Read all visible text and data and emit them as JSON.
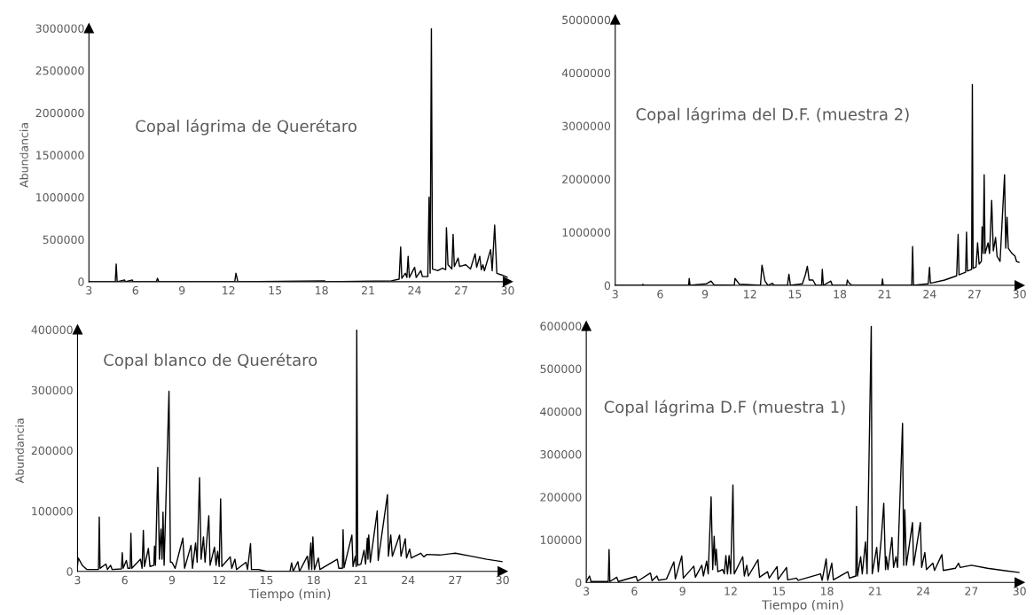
{
  "chart_data": [
    {
      "type": "line",
      "title": "Copal lágrima de Querétaro",
      "ylabel": "Abundancia",
      "xlim": [
        3,
        30
      ],
      "xticks": [
        3,
        6,
        9,
        12,
        15,
        18,
        21,
        24,
        27,
        30
      ],
      "ylim": [
        0,
        3000000
      ],
      "yticks": [
        0,
        500000,
        1000000,
        1500000,
        2000000,
        2500000,
        3000000
      ],
      "grid": false,
      "x": [
        3,
        4.7,
        4.76,
        4.82,
        5.3,
        5.35,
        5.8,
        5.85,
        7.35,
        7.42,
        7.5,
        12.4,
        12.48,
        12.6,
        18.2,
        18.25,
        22.5,
        23.0,
        23.1,
        23.17,
        23.4,
        23.5,
        23.58,
        23.66,
        24.0,
        24.1,
        24.4,
        24.5,
        24.85,
        24.93,
        25.0,
        25.08,
        25.15,
        25.5,
        25.8,
        26.0,
        26.05,
        26.15,
        26.4,
        26.48,
        26.56,
        26.8,
        26.9,
        27.3,
        27.6,
        27.9,
        28.0,
        28.2,
        28.3,
        28.4,
        28.5,
        28.9,
        29.0,
        29.16,
        29.3,
        29.6,
        30
      ],
      "series": [
        {
          "color": "#000000",
          "values": [
            0,
            0,
            210000,
            0,
            20000,
            0,
            20000,
            0,
            0,
            40000,
            0,
            0,
            100000,
            0,
            10000,
            0,
            10000,
            30000,
            410000,
            40000,
            100000,
            50000,
            300000,
            50000,
            170000,
            50000,
            130000,
            60000,
            60000,
            1000000,
            100000,
            3000000,
            150000,
            130000,
            160000,
            140000,
            640000,
            200000,
            150000,
            560000,
            180000,
            280000,
            180000,
            200000,
            150000,
            330000,
            170000,
            300000,
            140000,
            200000,
            130000,
            380000,
            130000,
            670000,
            100000,
            80000,
            50000
          ]
        }
      ]
    },
    {
      "type": "line",
      "title": "Copal lágrima del D.F. (muestra 2)",
      "xlim": [
        3,
        30
      ],
      "xticks": [
        3,
        6,
        9,
        12,
        15,
        18,
        21,
        24,
        27,
        30
      ],
      "ylim": [
        0,
        5000000
      ],
      "yticks": [
        0,
        1000000,
        2000000,
        3000000,
        4000000,
        5000000
      ],
      "grid": false,
      "x": [
        3,
        4.8,
        4.85,
        4.9,
        7.9,
        7.94,
        8.0,
        9.1,
        9.4,
        9.6,
        10.95,
        11.0,
        11.3,
        12.7,
        12.8,
        13.0,
        13.2,
        13.5,
        13.6,
        14.5,
        14.6,
        14.7,
        15.5,
        15.7,
        15.83,
        15.95,
        16.2,
        16.4,
        16.78,
        16.83,
        16.9,
        17.4,
        17.5,
        18.45,
        18.5,
        18.6,
        18.8,
        20.8,
        20.85,
        20.9,
        22.8,
        22.86,
        22.92,
        23.9,
        23.99,
        24.05,
        25,
        25.8,
        25.9,
        25.96,
        26.4,
        26.46,
        26.52,
        26.8,
        26.85,
        26.9,
        27.1,
        27.2,
        27.3,
        27.45,
        27.5,
        27.57,
        27.64,
        27.7,
        27.9,
        28.0,
        28.14,
        28.25,
        28.4,
        28.5,
        28.7,
        29.0,
        29.08,
        29.17,
        29.25,
        29.5,
        29.7,
        29.8,
        30
      ],
      "series": [
        {
          "color": "#000000",
          "values": [
            0,
            0,
            20000,
            0,
            0,
            130000,
            0,
            30000,
            80000,
            10000,
            0,
            130000,
            20000,
            0,
            380000,
            80000,
            0,
            40000,
            0,
            0,
            210000,
            0,
            30000,
            200000,
            360000,
            100000,
            100000,
            0,
            0,
            300000,
            0,
            80000,
            0,
            0,
            100000,
            50000,
            0,
            0,
            120000,
            0,
            0,
            730000,
            0,
            30000,
            340000,
            40000,
            100000,
            180000,
            960000,
            200000,
            250000,
            1000000,
            270000,
            300000,
            3780000,
            320000,
            350000,
            800000,
            400000,
            450000,
            1100000,
            600000,
            2080000,
            600000,
            800000,
            600000,
            1600000,
            650000,
            900000,
            550000,
            450000,
            2080000,
            700000,
            1280000,
            700000,
            600000,
            550000,
            450000,
            430000
          ]
        }
      ]
    },
    {
      "type": "line",
      "title": "Copal blanco de Querétaro",
      "xlabel": "Tiempo (min)",
      "ylabel": "Abundancia",
      "xlim": [
        3,
        30
      ],
      "xticks": [
        3,
        6,
        9,
        12,
        15,
        18,
        21,
        24,
        27,
        30
      ],
      "ylim": [
        0,
        400000
      ],
      "yticks": [
        0,
        100000,
        200000,
        300000,
        400000
      ],
      "grid": false,
      "x": [
        3.0,
        3.05,
        3.3,
        3.6,
        4.33,
        4.38,
        4.43,
        4.8,
        4.9,
        5.1,
        5.2,
        5.79,
        5.84,
        5.9,
        6.1,
        6.2,
        6.34,
        6.39,
        6.45,
        7.0,
        7.1,
        7.18,
        7.25,
        7.5,
        7.6,
        7.85,
        7.89,
        7.95,
        8.1,
        8.2,
        8.3,
        8.37,
        8.43,
        8.5,
        8.81,
        8.9,
        9.0,
        9.2,
        9.69,
        9.8,
        10.21,
        10.3,
        10.5,
        10.6,
        10.75,
        10.85,
        11.0,
        11.1,
        11.34,
        11.42,
        11.7,
        11.8,
        11.9,
        12.0,
        12.09,
        12.17,
        12.7,
        12.8,
        13.0,
        13.1,
        13.7,
        13.8,
        13.99,
        14.05,
        14.5,
        15.0,
        16.5,
        16.6,
        16.7,
        17.0,
        17.1,
        17.6,
        17.7,
        17.82,
        17.88,
        17.95,
        18.05,
        18.3,
        18.4,
        19.5,
        19.6,
        19.83,
        19.87,
        19.93,
        20.43,
        20.5,
        20.65,
        20.7,
        20.74,
        20.8,
        21.0,
        21.2,
        21.3,
        21.41,
        21.45,
        21.5,
        21.6,
        22.04,
        22.1,
        22.69,
        22.75,
        22.9,
        23.0,
        23.46,
        23.55,
        23.82,
        23.9,
        24.1,
        24.2,
        24.8,
        25.0,
        25.2,
        26.0,
        27.0,
        28.0,
        29.0,
        30.0
      ],
      "series": [
        {
          "color": "#000000",
          "values": [
            10000,
            22000,
            10000,
            3000,
            3000,
            90000,
            5000,
            12000,
            3000,
            10000,
            3000,
            4000,
            31000,
            5000,
            18000,
            5000,
            5000,
            63000,
            5000,
            20000,
            5000,
            68000,
            8000,
            38000,
            8000,
            10000,
            42000,
            10000,
            172000,
            20000,
            70000,
            20000,
            98000,
            10000,
            298000,
            15000,
            15000,
            5000,
            55000,
            5000,
            43000,
            5000,
            47000,
            15000,
            155000,
            20000,
            57000,
            15000,
            92000,
            10000,
            40000,
            10000,
            33000,
            8000,
            120000,
            8000,
            24000,
            5000,
            20000,
            3000,
            15000,
            3000,
            46000,
            3000,
            3000,
            0,
            0,
            14000,
            0,
            16000,
            0,
            25000,
            3000,
            47000,
            3000,
            57000,
            3000,
            22000,
            3000,
            20000,
            5000,
            5000,
            69000,
            6000,
            60000,
            8000,
            25000,
            8000,
            400000,
            10000,
            12000,
            35000,
            12000,
            55000,
            20000,
            60000,
            15000,
            100000,
            18000,
            127000,
            25000,
            60000,
            25000,
            60000,
            25000,
            54000,
            22000,
            37000,
            22000,
            30000,
            24000,
            28000,
            27000,
            30000,
            25000,
            20000,
            16000
          ]
        }
      ]
    },
    {
      "type": "line",
      "title": "Copal lágrima D.F (muestra 1)",
      "xlabel": "Tiempo (min)",
      "xlim": [
        3,
        30
      ],
      "xticks": [
        3,
        6,
        9,
        12,
        15,
        18,
        21,
        24,
        27,
        30
      ],
      "ylim": [
        0,
        600000
      ],
      "yticks": [
        0,
        100000,
        200000,
        300000,
        400000,
        500000,
        600000
      ],
      "grid": false,
      "x": [
        3.0,
        3.2,
        3.3,
        4.37,
        4.42,
        4.47,
        4.9,
        5.0,
        6.1,
        6.2,
        7.0,
        7.1,
        7.4,
        7.5,
        8.0,
        8.46,
        8.55,
        8.95,
        9.05,
        9.7,
        9.8,
        10.2,
        10.3,
        10.5,
        10.6,
        10.78,
        10.88,
        10.97,
        11.04,
        11.1,
        11.2,
        11.5,
        11.6,
        11.7,
        11.8,
        11.9,
        12.0,
        12.14,
        12.22,
        12.75,
        12.85,
        13.0,
        13.1,
        13.7,
        13.8,
        14.3,
        14.4,
        14.89,
        14.95,
        15.48,
        15.55,
        16.1,
        16.2,
        17.6,
        17.7,
        17.95,
        18.05,
        18.3,
        18.4,
        19.3,
        19.4,
        19.8,
        19.84,
        19.9,
        20.1,
        20.2,
        20.4,
        20.5,
        20.76,
        20.82,
        21.1,
        21.2,
        21.4,
        21.54,
        21.65,
        21.7,
        21.8,
        22.05,
        22.15,
        22.3,
        22.4,
        22.71,
        22.78,
        22.85,
        22.95,
        23.33,
        23.4,
        23.82,
        23.9,
        24.1,
        24.2,
        24.6,
        24.7,
        25.16,
        25.25,
        26.0,
        26.2,
        26.3,
        27.0,
        28.0,
        29.0,
        30.0
      ],
      "series": [
        {
          "color": "#000000",
          "values": [
            2000,
            15000,
            2000,
            2000,
            77000,
            2000,
            12000,
            2000,
            14000,
            3000,
            22000,
            4000,
            15000,
            5000,
            8000,
            48000,
            8000,
            62000,
            10000,
            38000,
            12000,
            40000,
            15000,
            50000,
            20000,
            200000,
            30000,
            108000,
            40000,
            78000,
            25000,
            30000,
            20000,
            63000,
            20000,
            63000,
            20000,
            228000,
            20000,
            60000,
            15000,
            40000,
            15000,
            53000,
            12000,
            25000,
            10000,
            37000,
            7000,
            35000,
            6000,
            10000,
            5000,
            20000,
            5000,
            55000,
            5000,
            45000,
            6000,
            25000,
            10000,
            15000,
            178000,
            15000,
            60000,
            20000,
            95000,
            20000,
            600000,
            20000,
            82000,
            25000,
            110000,
            185000,
            30000,
            60000,
            30000,
            105000,
            35000,
            60000,
            35000,
            372000,
            40000,
            170000,
            40000,
            140000,
            40000,
            140000,
            35000,
            70000,
            30000,
            45000,
            28000,
            65000,
            28000,
            33000,
            45000,
            35000,
            40000,
            33000,
            28000,
            23000
          ]
        }
      ]
    }
  ]
}
